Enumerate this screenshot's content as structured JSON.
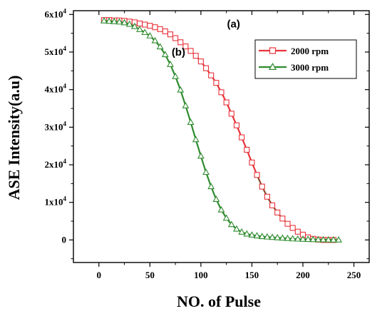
{
  "chart_data": {
    "type": "line",
    "xlabel": "NO. of Pulse",
    "ylabel": "ASE Intensity(a.u)",
    "xlim": [
      -25,
      265
    ],
    "ylim": [
      -6000,
      61000
    ],
    "x_ticks": [
      0,
      50,
      100,
      150,
      200,
      250
    ],
    "y_ticks": [
      {
        "value": 0,
        "mantissa": "0",
        "exponent": ""
      },
      {
        "value": 10000,
        "mantissa": "1x10",
        "exponent": "4"
      },
      {
        "value": 20000,
        "mantissa": "2x10",
        "exponent": "4"
      },
      {
        "value": 30000,
        "mantissa": "3x10",
        "exponent": "4"
      },
      {
        "value": 40000,
        "mantissa": "4x10",
        "exponent": "4"
      },
      {
        "value": 50000,
        "mantissa": "5x10",
        "exponent": "4"
      },
      {
        "value": 60000,
        "mantissa": "6x10",
        "exponent": "4"
      }
    ],
    "legend_position": "top-right",
    "series": [
      {
        "name": "2000 rpm",
        "marker": "square",
        "color": "#e8333b",
        "line_color_late": "#8b4a2b",
        "x": [
          5,
          10,
          15,
          20,
          25,
          30,
          35,
          40,
          45,
          50,
          55,
          60,
          65,
          70,
          75,
          80,
          85,
          90,
          95,
          100,
          105,
          110,
          115,
          120,
          125,
          130,
          135,
          140,
          145,
          150,
          155,
          160,
          165,
          170,
          175,
          180,
          185,
          190,
          195,
          200,
          205,
          210,
          215,
          220,
          225,
          230
        ],
        "y": [
          58500,
          58500,
          58400,
          58400,
          58300,
          58100,
          57900,
          57600,
          57300,
          57000,
          56600,
          56100,
          55500,
          54700,
          53700,
          52600,
          51500,
          50300,
          49000,
          47500,
          45700,
          43800,
          41800,
          39300,
          36600,
          33600,
          30500,
          27300,
          24000,
          20600,
          17300,
          14200,
          11500,
          9200,
          7300,
          5700,
          4300,
          3200,
          2200,
          1400,
          700,
          300,
          100,
          0,
          0,
          0
        ]
      },
      {
        "name": "3000 rpm",
        "marker": "triangle",
        "color": "#2e8b2e",
        "x": [
          5,
          10,
          15,
          20,
          25,
          30,
          35,
          40,
          45,
          50,
          55,
          60,
          65,
          70,
          75,
          80,
          85,
          90,
          95,
          100,
          105,
          110,
          115,
          120,
          125,
          130,
          135,
          140,
          145,
          150,
          155,
          160,
          165,
          170,
          175,
          180,
          185,
          190,
          195,
          200,
          205,
          210,
          215,
          220,
          225,
          230,
          235
        ],
        "y": [
          58300,
          58200,
          58100,
          58000,
          57800,
          57400,
          56800,
          56000,
          55200,
          54300,
          53000,
          51400,
          49300,
          46700,
          43500,
          39900,
          35700,
          31300,
          26700,
          22300,
          18000,
          14200,
          10800,
          8000,
          5800,
          4100,
          2900,
          2100,
          1600,
          1300,
          1100,
          900,
          800,
          700,
          600,
          500,
          400,
          300,
          250,
          200,
          150,
          100,
          80,
          50,
          30,
          10,
          0
        ]
      }
    ],
    "annotations": [
      {
        "text": "(a)",
        "x": 132,
        "y": 56500
      },
      {
        "text": "(b)",
        "x": 78,
        "y": 49000
      }
    ]
  }
}
